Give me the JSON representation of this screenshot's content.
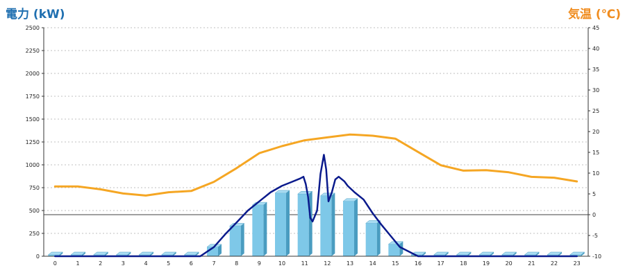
{
  "chart_data": {
    "type": "bar",
    "left_axis_title": "電力 (kW)",
    "right_axis_title": "気温 (℃)",
    "categories": [
      "0",
      "1",
      "2",
      "3",
      "4",
      "5",
      "6",
      "7",
      "8",
      "9",
      "10",
      "11",
      "12",
      "13",
      "14",
      "15",
      "16",
      "17",
      "18",
      "19",
      "20",
      "21",
      "22",
      "23"
    ],
    "left_axis": {
      "min": 0,
      "max": 2500,
      "ticks": [
        "0",
        "250",
        "500",
        "750",
        "1000",
        "1250",
        "1500",
        "1750",
        "2000",
        "2250",
        "2500"
      ]
    },
    "right_axis": {
      "min": -10,
      "max": 45,
      "ticks": [
        "-10",
        "-5",
        "0",
        "5",
        "10",
        "15",
        "20",
        "25",
        "30",
        "35",
        "40",
        "45"
      ]
    },
    "grid": true,
    "colors": {
      "bar": "#7ec8e8",
      "bar_side": "#4a9cc0",
      "bar_top": "#a9dcf2",
      "temperature": "#f5a623",
      "power_line": "#0a1a8c",
      "left_title": "#1f6fb0",
      "right_title": "#f08c1e"
    },
    "series": [
      {
        "kind": "bar",
        "axis": "left",
        "values": [
          0,
          0,
          0,
          0,
          0,
          0,
          0,
          100,
          330,
          560,
          690,
          680,
          660,
          600,
          360,
          130,
          0,
          0,
          0,
          0,
          0,
          0,
          0,
          0
        ]
      },
      {
        "kind": "line",
        "axis": "right",
        "x": [
          0,
          1,
          2,
          3,
          4,
          5,
          6,
          7,
          8,
          9,
          10,
          11,
          12,
          13,
          14,
          15,
          16,
          17,
          18,
          19,
          20,
          21,
          22,
          23
        ],
        "values": [
          6.8,
          6.8,
          6.1,
          5.1,
          4.6,
          5.4,
          5.7,
          7.9,
          11.2,
          14.8,
          16.5,
          17.9,
          18.6,
          19.3,
          19.0,
          18.3,
          15.1,
          11.9,
          10.6,
          10.7,
          10.2,
          9.1,
          8.9,
          8.0
        ]
      },
      {
        "kind": "line",
        "axis": "left",
        "x": [
          0,
          6.4,
          7,
          7.5,
          8,
          8.5,
          9,
          9.5,
          10,
          10.4,
          10.8,
          10.95,
          11.05,
          11.15,
          11.25,
          11.35,
          11.55,
          11.7,
          11.85,
          11.95,
          12.05,
          12.2,
          12.35,
          12.5,
          12.6,
          12.75,
          12.9,
          13.2,
          13.6,
          14,
          14.4,
          14.8,
          15.2,
          15.6,
          16,
          23
        ],
        "values": [
          0,
          0,
          100,
          240,
          370,
          500,
          600,
          700,
          770,
          810,
          850,
          870,
          790,
          650,
          420,
          380,
          500,
          900,
          1110,
          950,
          600,
          700,
          840,
          870,
          850,
          820,
          770,
          700,
          620,
          470,
          340,
          220,
          100,
          50,
          0,
          0
        ]
      }
    ]
  }
}
